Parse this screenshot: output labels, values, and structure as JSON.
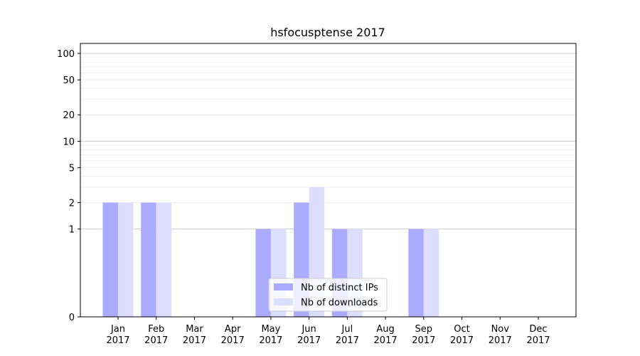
{
  "chart_data": {
    "type": "bar",
    "title": "hsfocusptense 2017",
    "categories": [
      "Jan\n2017",
      "Feb\n2017",
      "Mar\n2017",
      "Apr\n2017",
      "May\n2017",
      "Jun\n2017",
      "Jul\n2017",
      "Aug\n2017",
      "Sep\n2017",
      "Oct\n2017",
      "Nov\n2017",
      "Dec\n2017"
    ],
    "series": [
      {
        "name": "Nb of distinct IPs",
        "color": "#aaaaff",
        "values": [
          2,
          2,
          0,
          0,
          1,
          2,
          1,
          0,
          1,
          0,
          0,
          0
        ]
      },
      {
        "name": "Nb of downloads",
        "color": "#ddddff",
        "values": [
          2,
          2,
          0,
          0,
          1,
          3,
          1,
          0,
          1,
          0,
          0,
          0
        ]
      }
    ],
    "yscale": "symlog",
    "yticks": [
      0,
      1,
      2,
      5,
      10,
      20,
      50,
      100
    ],
    "ylim": [
      0,
      130
    ],
    "grid": true,
    "legend_position": "lower center"
  }
}
